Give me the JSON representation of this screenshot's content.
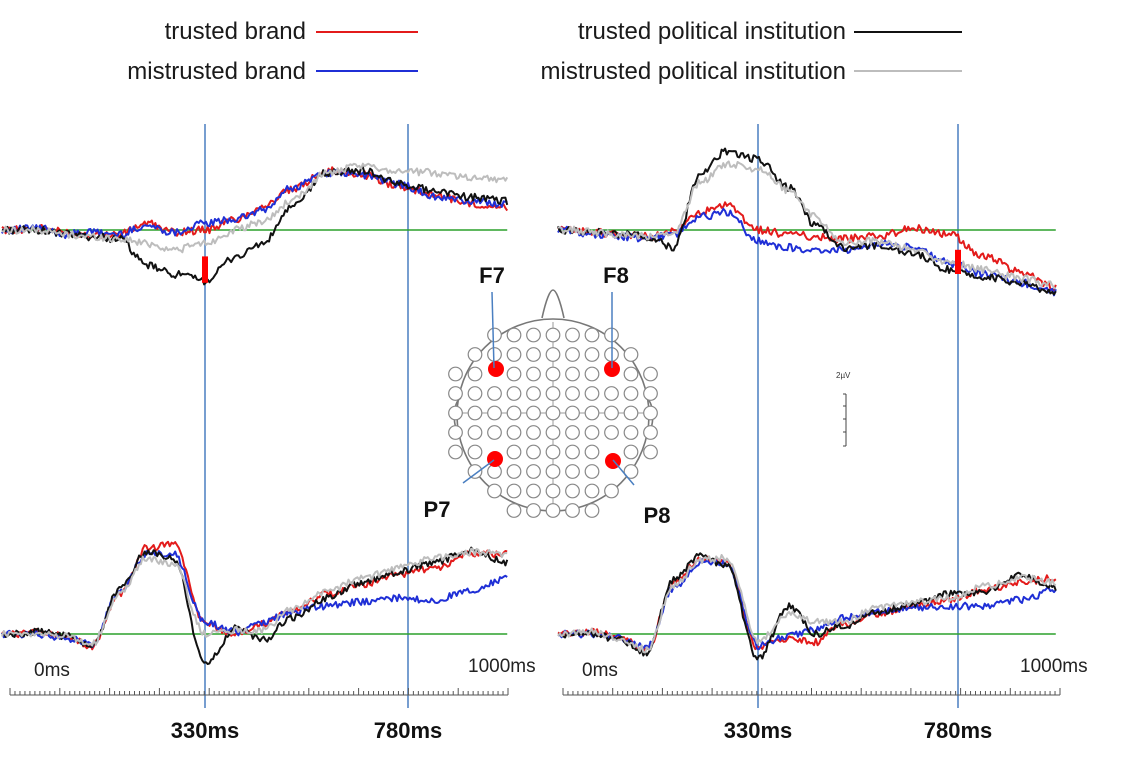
{
  "colors": {
    "trusted_brand": "#e31b1b",
    "mistrusted_brand": "#1f2fd6",
    "trusted_political": "#111111",
    "mistrusted_political": "#bdbdbd",
    "baseline": "#2ca02c",
    "time_marker": "#4a7fc1",
    "significance": "#ff0000",
    "electrode_highlight": "#ff0000"
  },
  "legend": {
    "trusted_brand": "trusted brand",
    "mistrusted_brand": "mistrusted brand",
    "trusted_political": "trusted political institution",
    "mistrusted_political": "mistrusted political institution"
  },
  "axes": {
    "left": {
      "start_label": "0ms",
      "end_label": "1000ms",
      "marker1": "330ms",
      "marker2": "780ms"
    },
    "right": {
      "start_label": "0ms",
      "end_label": "1000ms",
      "marker1": "330ms",
      "marker2": "780ms"
    }
  },
  "electrodes": {
    "F7": "F7",
    "F8": "F8",
    "P7": "P7",
    "P8": "P8"
  },
  "scale_label": "2µV",
  "chart_data": [
    {
      "type": "line",
      "panel": "F7",
      "x": [
        -100,
        -40,
        20,
        80,
        140,
        200,
        260,
        330,
        400,
        460,
        520,
        600,
        680,
        760,
        840,
        920,
        1000
      ],
      "xlim": [
        -120,
        1000
      ],
      "time_markers": [
        330,
        780
      ],
      "series": [
        {
          "name": "trusted brand",
          "values": [
            0.0,
            0.1,
            -0.1,
            -0.2,
            -0.2,
            0.3,
            -0.1,
            0.0,
            0.5,
            1.1,
            1.8,
            2.7,
            2.5,
            2.0,
            1.6,
            1.2,
            1.0
          ]
        },
        {
          "name": "mistrusted brand",
          "values": [
            0.0,
            0.1,
            -0.2,
            -0.1,
            -0.2,
            0.2,
            -0.1,
            0.3,
            0.5,
            0.9,
            1.9,
            2.6,
            2.5,
            2.1,
            1.5,
            1.3,
            1.2
          ]
        },
        {
          "name": "trusted political institution",
          "values": [
            0.0,
            0.0,
            -0.2,
            -0.3,
            -0.4,
            -1.6,
            -2.0,
            -2.3,
            -1.2,
            -0.6,
            1.0,
            2.6,
            2.7,
            2.1,
            1.8,
            1.5,
            1.3
          ]
        },
        {
          "name": "mistrusted political institution",
          "values": [
            0.0,
            0.0,
            -0.2,
            -0.3,
            -0.4,
            -0.6,
            -0.9,
            -0.6,
            0.0,
            0.4,
            1.3,
            2.6,
            2.9,
            2.7,
            2.6,
            2.4,
            2.3
          ]
        }
      ],
      "significance": [
        {
          "x": 330,
          "from": -1.2,
          "to": -2.4
        }
      ]
    },
    {
      "type": "line",
      "panel": "F8",
      "x": [
        -100,
        -40,
        20,
        80,
        140,
        200,
        260,
        330,
        400,
        460,
        520,
        600,
        680,
        760,
        840,
        920,
        1000
      ],
      "xlim": [
        -120,
        1000
      ],
      "time_markers": [
        330,
        780
      ],
      "series": [
        {
          "name": "trusted brand",
          "values": [
            0.0,
            -0.1,
            -0.2,
            -0.3,
            -0.1,
            0.8,
            1.1,
            0.0,
            -0.2,
            -0.3,
            -0.4,
            -0.3,
            0.1,
            -0.2,
            -1.2,
            -1.9,
            -2.6
          ]
        },
        {
          "name": "mistrusted brand",
          "values": [
            0.0,
            -0.2,
            -0.3,
            -0.4,
            -0.2,
            0.6,
            0.8,
            -0.5,
            -0.8,
            -0.9,
            -0.9,
            -0.6,
            -0.8,
            -1.5,
            -2.0,
            -2.4,
            -2.8
          ]
        },
        {
          "name": "trusted political institution",
          "values": [
            0.0,
            -0.1,
            -0.2,
            -0.3,
            -0.8,
            2.5,
            3.6,
            3.2,
            1.9,
            0.2,
            -0.8,
            -0.7,
            -1.1,
            -1.8,
            -2.1,
            -2.4,
            -2.9
          ]
        },
        {
          "name": "mistrusted political institution",
          "values": [
            0.0,
            -0.1,
            -0.2,
            -0.3,
            -0.2,
            2.2,
            3.0,
            2.8,
            1.8,
            0.6,
            -0.6,
            -0.5,
            -0.9,
            -1.5,
            -1.8,
            -2.2,
            -2.5
          ]
        }
      ],
      "significance": [
        {
          "x": 780,
          "from": -0.9,
          "to": -2.0
        }
      ]
    },
    {
      "type": "line",
      "panel": "P7",
      "x": [
        -100,
        -40,
        20,
        80,
        140,
        200,
        260,
        330,
        400,
        460,
        520,
        600,
        680,
        760,
        840,
        920,
        1000
      ],
      "xlim": [
        -120,
        1000
      ],
      "time_markers": [
        330,
        780
      ],
      "series": [
        {
          "name": "trusted brand",
          "values": [
            0.0,
            0.1,
            -0.1,
            -0.6,
            2.0,
            4.3,
            4.5,
            0.5,
            0.0,
            0.5,
            1.2,
            2.0,
            2.5,
            3.0,
            3.3,
            4.0,
            4.0
          ]
        },
        {
          "name": "mistrusted brand",
          "values": [
            0.0,
            0.0,
            -0.2,
            -0.5,
            2.1,
            4.0,
            4.0,
            0.6,
            0.1,
            0.6,
            1.1,
            1.4,
            1.6,
            1.8,
            1.7,
            2.2,
            2.8
          ]
        },
        {
          "name": "trusted political institution",
          "values": [
            0.0,
            0.1,
            -0.1,
            -0.6,
            2.2,
            4.1,
            3.8,
            -1.5,
            0.3,
            -0.3,
            0.8,
            1.8,
            2.6,
            3.1,
            3.6,
            4.2,
            3.6
          ]
        },
        {
          "name": "mistrusted political institution",
          "values": [
            0.0,
            0.0,
            -0.1,
            -0.5,
            2.0,
            3.8,
            3.5,
            0.0,
            0.2,
            0.2,
            1.2,
            2.1,
            2.8,
            3.3,
            3.8,
            4.1,
            4.0
          ]
        }
      ]
    },
    {
      "type": "line",
      "panel": "P8",
      "x": [
        -100,
        -40,
        20,
        80,
        140,
        200,
        260,
        330,
        400,
        460,
        520,
        600,
        680,
        760,
        840,
        920,
        1000
      ],
      "xlim": [
        -120,
        1000
      ],
      "time_markers": [
        330,
        780
      ],
      "series": [
        {
          "name": "trusted brand",
          "values": [
            0.0,
            0.1,
            -0.2,
            -0.8,
            2.5,
            3.8,
            3.6,
            -0.7,
            -0.2,
            -0.4,
            0.5,
            1.0,
            1.4,
            1.7,
            2.2,
            2.6,
            2.8
          ]
        },
        {
          "name": "mistrusted brand",
          "values": [
            0.0,
            0.0,
            -0.2,
            -0.7,
            2.3,
            3.6,
            3.5,
            -0.6,
            -0.1,
            0.2,
            0.8,
            1.1,
            1.3,
            1.4,
            1.4,
            1.7,
            2.2
          ]
        },
        {
          "name": "trusted political institution",
          "values": [
            0.0,
            0.0,
            -0.3,
            -1.0,
            2.7,
            3.9,
            3.4,
            -1.2,
            1.4,
            0.0,
            0.4,
            1.1,
            1.5,
            2.0,
            2.1,
            3.0,
            2.3
          ]
        },
        {
          "name": "mistrusted political institution",
          "values": [
            0.0,
            0.1,
            -0.2,
            -0.8,
            2.4,
            3.7,
            3.8,
            -0.3,
            1.0,
            0.6,
            0.6,
            1.3,
            1.6,
            1.8,
            2.4,
            2.8,
            2.6
          ]
        }
      ]
    }
  ]
}
